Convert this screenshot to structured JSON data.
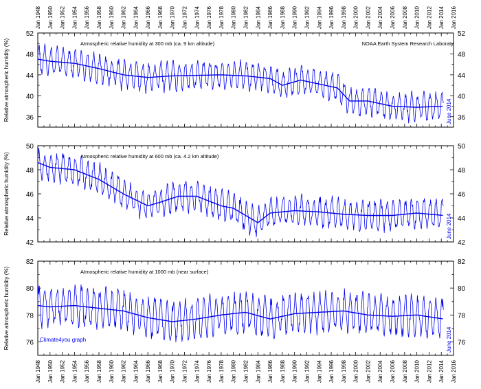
{
  "source_label": "NOAA Earth System Research Laboraty",
  "credit_label": "Climate4you graph",
  "series_color": "#0000ee",
  "x_axis": {
    "year_min": 1948,
    "year_max": 2016,
    "tick_labels": [
      "Jan 1948",
      "Jan 1950",
      "Jan 1952",
      "Jan 1954",
      "Jan 1956",
      "Jan 1958",
      "Jan 1960",
      "Jan 1962",
      "Jan 1964",
      "Jan 1966",
      "Jan 1968",
      "Jan 1970",
      "Jan 1972",
      "Jan 1974",
      "Jan 1976",
      "Jan 1978",
      "Jan 1980",
      "Jan 1982",
      "Jan 1984",
      "Jan 1986",
      "Jan 1988",
      "Jan 1990",
      "Jan 1992",
      "Jan 1994",
      "Jan 1996",
      "Jan 1998",
      "Jan 2000",
      "Jan 2002",
      "Jan 2004",
      "Jan 2006",
      "Jan 2008",
      "Jan 2010",
      "Jan 2012",
      "Jan 2014",
      "Jan 2016"
    ]
  },
  "chart_data": [
    {
      "type": "line",
      "title": "Atmospheric relative humidity at 300 mb (ca. 9 km altitude)",
      "ylabel": "Relative atmospheric humidity (%)",
      "end_label": "June 2014",
      "ylim": [
        34,
        52
      ],
      "yticks": [
        36,
        40,
        44,
        48,
        52
      ],
      "series": [
        {
          "role": "monthly",
          "amplitude": 2.4
        },
        {
          "role": "smoothed",
          "x": [
            1948,
            1950,
            1954,
            1958,
            1962,
            1966,
            1970,
            1974,
            1978,
            1982,
            1986,
            1988,
            1991,
            1995,
            1997,
            1999,
            2002,
            2006,
            2010,
            2014.4
          ],
          "y": [
            47.0,
            46.6,
            46.2,
            45.2,
            44.0,
            43.5,
            43.8,
            43.9,
            44.0,
            43.8,
            43.3,
            42.0,
            43.0,
            42.0,
            41.5,
            39.0,
            39.0,
            38.0,
            37.8,
            38.0
          ]
        }
      ]
    },
    {
      "type": "line",
      "title": "Atmospheric relative humidity at 600 mb (ca. 4.2 km altitude)",
      "ylabel": "Relative atmospheric humidity (%)",
      "end_label": "June 2014",
      "ylim": [
        42,
        50
      ],
      "yticks": [
        42,
        44,
        46,
        48,
        50
      ],
      "series": [
        {
          "role": "monthly",
          "amplitude": 1.1
        },
        {
          "role": "smoothed",
          "x": [
            1948,
            1950,
            1954,
            1958,
            1962,
            1966,
            1968,
            1971,
            1974,
            1978,
            1980,
            1982,
            1984,
            1986,
            1990,
            1994,
            1998,
            2002,
            2006,
            2010,
            2014.4
          ],
          "y": [
            48.6,
            48.2,
            48.0,
            47.2,
            46.0,
            45.0,
            45.3,
            45.8,
            45.8,
            45.0,
            44.8,
            44.2,
            43.6,
            44.4,
            44.6,
            44.5,
            44.3,
            44.2,
            44.2,
            44.4,
            44.2
          ]
        }
      ]
    },
    {
      "type": "line",
      "title": "Atmospheric relative humidity at 1000 mb (near surface)",
      "ylabel": "Relative atmospheric humidity (%)",
      "end_label": "June 2014",
      "ylim": [
        75,
        82
      ],
      "yticks": [
        76,
        78,
        80,
        82
      ],
      "series": [
        {
          "role": "monthly",
          "amplitude": 1.3
        },
        {
          "role": "smoothed",
          "x": [
            1948,
            1950,
            1954,
            1958,
            1962,
            1966,
            1970,
            1974,
            1978,
            1982,
            1986,
            1990,
            1994,
            1998,
            2002,
            2006,
            2010,
            2014.4
          ],
          "y": [
            78.7,
            78.6,
            78.7,
            78.5,
            78.3,
            77.8,
            77.5,
            77.7,
            78.0,
            78.2,
            77.7,
            78.1,
            78.2,
            78.3,
            78.0,
            77.9,
            78.0,
            77.7
          ]
        }
      ]
    }
  ]
}
